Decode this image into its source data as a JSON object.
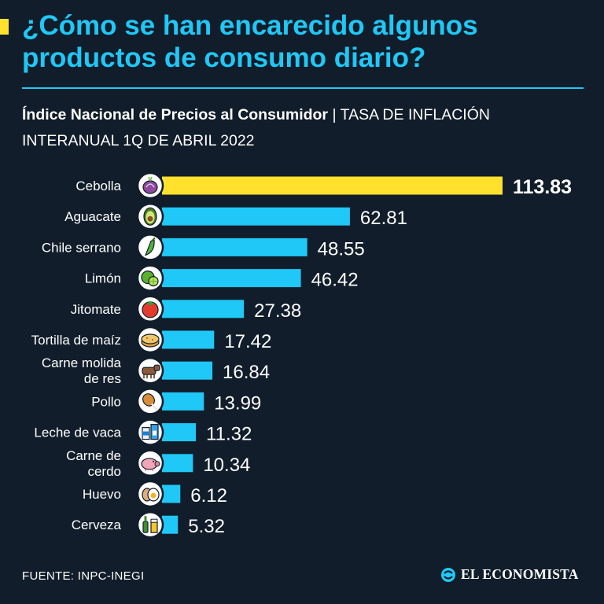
{
  "header": {
    "title": "¿Cómo se han encarecido algunos productos de consumo diario?",
    "subtitle_strong": "Índice Nacional de Precios al Consumidor",
    "subtitle_separator": "|",
    "subtitle_rest": "TASA DE INFLACIÓN INTERANUAL 1Q DE ABRIL 2022"
  },
  "colors": {
    "background": "#111d2a",
    "title": "#1fc8f6",
    "bar_default": "#1fc8f6",
    "bar_highlight": "#ffe12e",
    "accent_mark": "#ffe12e"
  },
  "chart_data": {
    "type": "bar",
    "orientation": "horizontal",
    "categories": [
      [
        "Cebolla"
      ],
      [
        "Aguacate"
      ],
      [
        "Chile serrano"
      ],
      [
        "Limón"
      ],
      [
        "Jitomate"
      ],
      [
        "Tortilla de maíz"
      ],
      [
        "Carne molida",
        "de res"
      ],
      [
        "Pollo"
      ],
      [
        "Leche de vaca"
      ],
      [
        "Carne de",
        "cerdo"
      ],
      [
        "Huevo"
      ],
      [
        "Cerveza"
      ]
    ],
    "values": [
      113.83,
      62.81,
      48.55,
      46.42,
      27.38,
      17.42,
      16.84,
      13.99,
      11.32,
      10.34,
      6.12,
      5.32
    ],
    "value_labels": [
      "113.83",
      "62.81",
      "48.55",
      "46.42",
      "27.38",
      "17.42",
      "16.84",
      "13.99",
      "11.32",
      "10.34",
      "6.12",
      "5.32"
    ],
    "icons": [
      "onion-icon",
      "avocado-icon",
      "chili-pepper-icon",
      "lime-icon",
      "tomato-icon",
      "tortilla-icon",
      "cow-icon",
      "chicken-leg-icon",
      "milk-icon",
      "pig-icon",
      "egg-icon",
      "beer-icon"
    ],
    "highlight_index": 0,
    "xlim": [
      0,
      113.83
    ],
    "grid": false,
    "legend": "none"
  },
  "footer": {
    "source": "FUENTE: INPC-INEGI",
    "brand": "EL ECONOMISTA",
    "brand_icon": "el-economista-logo-icon"
  }
}
